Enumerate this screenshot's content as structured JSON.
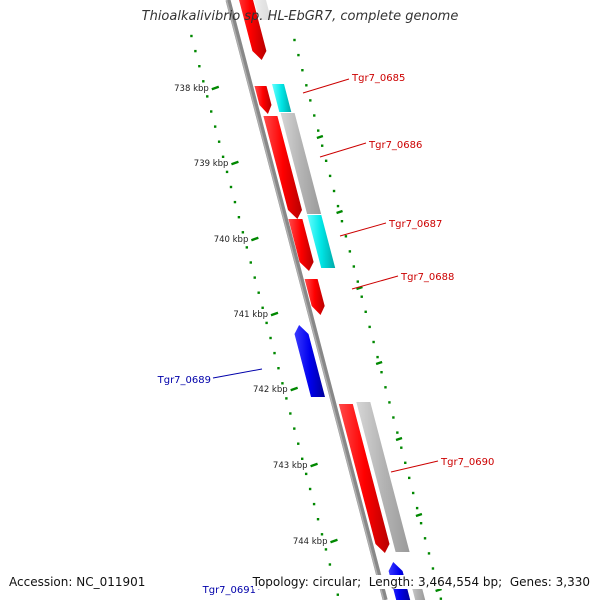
{
  "title": "Thioalkalivibrio sp. HL-EbGR7, complete genome",
  "footer": {
    "accession_label": "Accession:",
    "accession": "NC_011901",
    "topology_label": "Topology:",
    "topology": "circular",
    "length_label": "Length:",
    "length": "3,464,554 bp",
    "genes_label": "Genes:",
    "genes": "3,330"
  },
  "scale_labels": [
    "738 kbp",
    "739 kbp",
    "740 kbp",
    "741 kbp",
    "742 kbp",
    "743 kbp",
    "744 kbp"
  ],
  "genes": [
    {
      "id": "prev",
      "label": "",
      "strand": "+",
      "color": "#ff0000"
    },
    {
      "id": "Tgr7_0685",
      "label": "Tgr7_0685",
      "strand": "+",
      "color": "#ff0000",
      "label_color": "#cc0000"
    },
    {
      "id": "Tgr7_0686",
      "label": "Tgr7_0686",
      "strand": "+",
      "color": "#ff0000",
      "label_color": "#cc0000"
    },
    {
      "id": "Tgr7_0687",
      "label": "Tgr7_0687",
      "strand": "+",
      "color": "#ff0000",
      "label_color": "#cc0000"
    },
    {
      "id": "Tgr7_0688",
      "label": "Tgr7_0688",
      "strand": "+",
      "color": "#ff0000",
      "label_color": "#cc0000"
    },
    {
      "id": "Tgr7_0689",
      "label": "Tgr7_0689",
      "strand": "-",
      "color": "#0000ee",
      "label_color": "#0000aa"
    },
    {
      "id": "Tgr7_0690",
      "label": "Tgr7_0690",
      "strand": "+",
      "color": "#ff0000",
      "label_color": "#cc0000"
    },
    {
      "id": "Tgr7_0691",
      "label": "Tgr7_0691",
      "strand": "-",
      "color": "#0000ee",
      "label_color": "#0000aa"
    }
  ],
  "features": [
    {
      "type": "rRNA/RNA",
      "color": "#00e5e5"
    },
    {
      "type": "CDS",
      "color": "#b4b4b4"
    }
  ],
  "colors": {
    "backbone": "#888888",
    "ticks": "#008800",
    "scale_text": "#222222"
  }
}
